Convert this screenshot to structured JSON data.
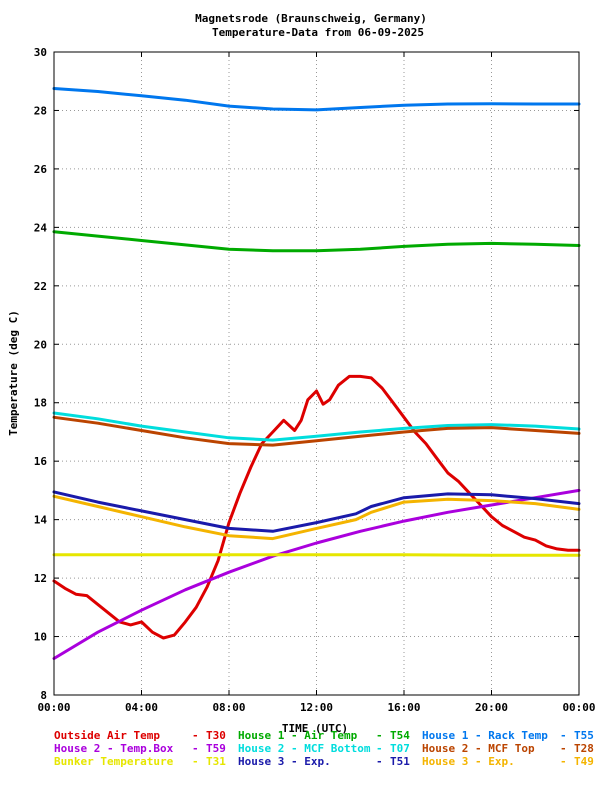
{
  "chart_data": {
    "type": "line",
    "title_lines": [
      "Magnetsrode (Braunschweig, Germany)",
      "Temperature-Data from 06-09-2025"
    ],
    "xlabel": "TIME (UTC)",
    "ylabel": "Temperature (deg C)",
    "xlim": [
      0,
      24
    ],
    "ylim": [
      8,
      30
    ],
    "xticks": [
      0,
      4,
      8,
      12,
      16,
      20,
      24
    ],
    "xtick_labels": [
      "00:00",
      "04:00",
      "08:00",
      "12:00",
      "16:00",
      "20:00",
      "00:00"
    ],
    "yticks": [
      8,
      10,
      12,
      14,
      16,
      18,
      20,
      22,
      24,
      26,
      28,
      30
    ],
    "ytick_labels": [
      "8",
      "10",
      "12",
      "14",
      "16",
      "18",
      "20",
      "22",
      "24",
      "26",
      "28",
      "30"
    ],
    "grid": true,
    "legend_position": "bottom",
    "series": [
      {
        "name": "Outside Air Temp",
        "code": "T30",
        "color": "#dd0000",
        "x": [
          0,
          0.5,
          1,
          1.5,
          2,
          2.5,
          3,
          3.5,
          4,
          4.5,
          5,
          5.5,
          6,
          6.5,
          7,
          7.5,
          8,
          8.5,
          9,
          9.5,
          10,
          10.5,
          11,
          11.3,
          11.6,
          12,
          12.3,
          12.6,
          13,
          13.5,
          14,
          14.5,
          15,
          15.5,
          16,
          16.5,
          17,
          17.5,
          18,
          18.5,
          19,
          19.5,
          20,
          20.5,
          21,
          21.5,
          22,
          22.5,
          23,
          23.5,
          24
        ],
        "y": [
          11.9,
          11.65,
          11.45,
          11.4,
          11.1,
          10.8,
          10.5,
          10.4,
          10.5,
          10.15,
          9.95,
          10.05,
          10.5,
          11.0,
          11.7,
          12.6,
          13.9,
          14.9,
          15.8,
          16.6,
          17.0,
          17.4,
          17.05,
          17.4,
          18.1,
          18.4,
          17.95,
          18.1,
          18.6,
          18.9,
          18.9,
          18.85,
          18.5,
          18.0,
          17.5,
          17.0,
          16.6,
          16.1,
          15.6,
          15.3,
          14.9,
          14.5,
          14.1,
          13.8,
          13.6,
          13.4,
          13.3,
          13.1,
          13.0,
          12.95,
          12.95
        ]
      },
      {
        "name": "House 1 - Air  Temp",
        "code": "T54",
        "color": "#00aa00",
        "x": [
          0,
          2,
          4,
          6,
          8,
          10,
          12,
          14,
          16,
          18,
          20,
          22,
          24
        ],
        "y": [
          23.85,
          23.7,
          23.55,
          23.4,
          23.25,
          23.2,
          23.2,
          23.25,
          23.35,
          23.42,
          23.45,
          23.42,
          23.38
        ]
      },
      {
        "name": "House 1 - Rack Temp",
        "code": "T55",
        "color": "#0077ee",
        "x": [
          0,
          2,
          4,
          6,
          8,
          10,
          12,
          14,
          16,
          18,
          20,
          22,
          24
        ],
        "y": [
          28.75,
          28.65,
          28.5,
          28.35,
          28.15,
          28.05,
          28.02,
          28.1,
          28.18,
          28.22,
          28.23,
          28.22,
          28.22
        ]
      },
      {
        "name": "House 2 - Temp.Box",
        "code": "T59",
        "color": "#aa00dd",
        "x": [
          0,
          2,
          4,
          6,
          8,
          10,
          12,
          14,
          16,
          18,
          20,
          22,
          24
        ],
        "y": [
          9.25,
          10.15,
          10.9,
          11.6,
          12.2,
          12.75,
          13.2,
          13.6,
          13.95,
          14.25,
          14.5,
          14.75,
          15.0
        ]
      },
      {
        "name": "House 2 - MCF Bottom",
        "code": "T07",
        "color": "#00dddd",
        "x": [
          0,
          2,
          4,
          6,
          8,
          10,
          12,
          14,
          16,
          18,
          20,
          22,
          24
        ],
        "y": [
          17.65,
          17.45,
          17.2,
          17.0,
          16.8,
          16.72,
          16.85,
          17.0,
          17.12,
          17.22,
          17.25,
          17.2,
          17.1
        ]
      },
      {
        "name": "House 2 - MCF Top",
        "code": "T28",
        "color": "#bb4400",
        "x": [
          0,
          2,
          4,
          6,
          8,
          10,
          12,
          14,
          16,
          18,
          20,
          22,
          24
        ],
        "y": [
          17.5,
          17.3,
          17.05,
          16.8,
          16.6,
          16.55,
          16.7,
          16.85,
          17.0,
          17.12,
          17.15,
          17.05,
          16.95
        ]
      },
      {
        "name": "Bunker Temperature",
        "code": "T31",
        "color": "#e6e600",
        "x": [
          0,
          4,
          8,
          12,
          16,
          20,
          24
        ],
        "y": [
          12.8,
          12.8,
          12.8,
          12.8,
          12.8,
          12.78,
          12.78
        ]
      },
      {
        "name": "House 3 - Exp.",
        "code": "T51",
        "color": "#1a1aaa",
        "x": [
          0,
          2,
          4,
          6,
          8,
          10,
          12,
          13.8,
          14.5,
          16,
          18,
          20,
          22,
          24
        ],
        "y": [
          14.95,
          14.6,
          14.3,
          14.0,
          13.7,
          13.6,
          13.9,
          14.2,
          14.45,
          14.75,
          14.88,
          14.85,
          14.72,
          14.55
        ]
      },
      {
        "name": "House 3 - Exp.",
        "code": "T49",
        "color": "#f4b400",
        "x": [
          0,
          2,
          4,
          6,
          8,
          10,
          12,
          13.8,
          14.5,
          16,
          18,
          20,
          22,
          24
        ],
        "y": [
          14.8,
          14.45,
          14.1,
          13.75,
          13.45,
          13.35,
          13.7,
          14.0,
          14.25,
          14.6,
          14.7,
          14.65,
          14.55,
          14.35
        ]
      }
    ]
  }
}
